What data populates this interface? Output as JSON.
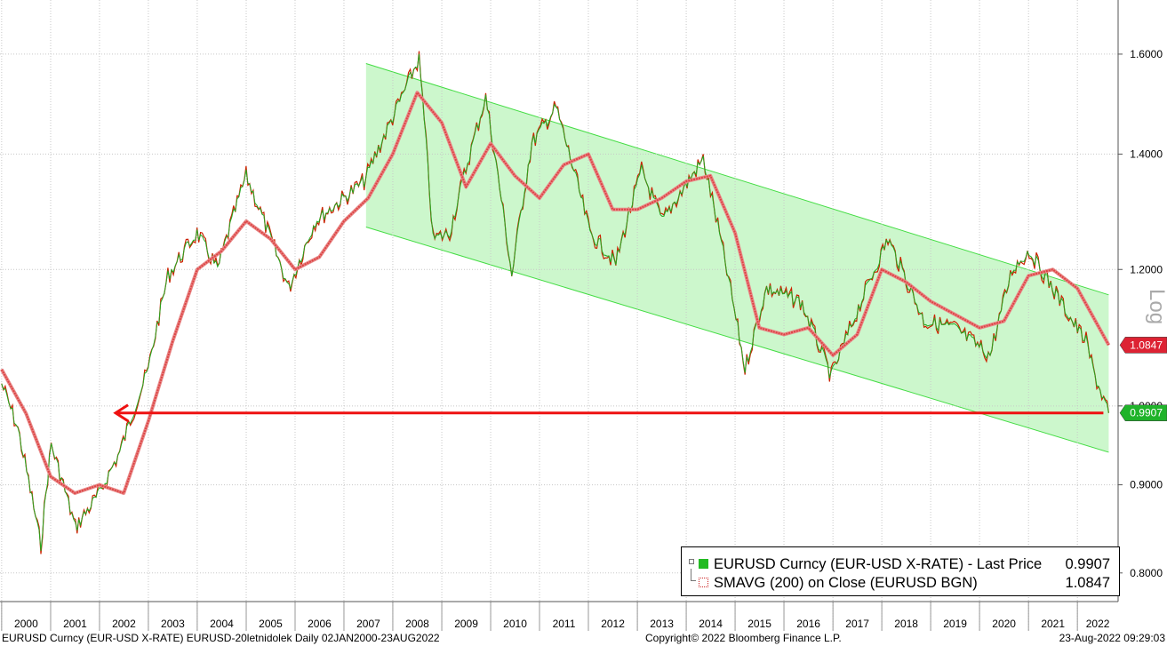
{
  "chart_data": {
    "type": "line",
    "instrument_title": "EURUSD Curncy (EUR-USD X-RATE)",
    "y_scale": "log",
    "y_axis_label": "Log",
    "ylim": [
      0.77,
      1.72
    ],
    "y_ticks": [
      "1.6000",
      "1.4000",
      "1.2000",
      "1.0000",
      "0.9000",
      "0.8000"
    ],
    "x_ticks": [
      "2000",
      "2001",
      "2002",
      "2003",
      "2004",
      "2005",
      "2006",
      "2007",
      "2008",
      "2009",
      "2010",
      "2011",
      "2012",
      "2013",
      "2014",
      "2015",
      "2016",
      "2017",
      "2018",
      "2019",
      "2020",
      "2021",
      "2022"
    ],
    "xlim": [
      "2000-01-02",
      "2022-08-23"
    ],
    "grid": true,
    "series": [
      {
        "name": "EURUSD Curncy (EUR-USD X-RATE) - Last Price",
        "color": "#22aa22",
        "last_value": "0.9907",
        "x": [
          "2000-01-01",
          "2000-05-01",
          "2000-10-20",
          "2001-01-05",
          "2001-07-05",
          "2002-01-01",
          "2002-06-01",
          "2002-12-31",
          "2003-05-27",
          "2003-12-31",
          "2004-06-01",
          "2004-12-31",
          "2005-11-15",
          "2006-06-01",
          "2006-12-31",
          "2007-06-01",
          "2007-12-31",
          "2008-07-15",
          "2008-10-27",
          "2009-03-01",
          "2009-11-25",
          "2010-06-08",
          "2010-11-05",
          "2011-05-04",
          "2012-01-13",
          "2012-07-24",
          "2013-02-01",
          "2013-07-05",
          "2014-05-08",
          "2015-03-16",
          "2015-08-24",
          "2016-05-03",
          "2016-12-20",
          "2017-06-01",
          "2018-02-16",
          "2018-11-12",
          "2019-06-25",
          "2020-03-20",
          "2020-09-01",
          "2021-01-06",
          "2021-11-24",
          "2022-03-07",
          "2022-05-13",
          "2022-08-23"
        ],
        "values": [
          1.03,
          0.97,
          0.83,
          0.95,
          0.85,
          0.89,
          0.94,
          1.05,
          1.19,
          1.26,
          1.2,
          1.36,
          1.17,
          1.28,
          1.32,
          1.35,
          1.47,
          1.59,
          1.25,
          1.26,
          1.51,
          1.19,
          1.42,
          1.49,
          1.26,
          1.21,
          1.37,
          1.28,
          1.39,
          1.05,
          1.17,
          1.15,
          1.04,
          1.12,
          1.25,
          1.12,
          1.11,
          1.07,
          1.2,
          1.23,
          1.12,
          1.09,
          1.04,
          0.9907
        ]
      },
      {
        "name": "SMAVG (200)  on Close (EURUSD BGN)",
        "color": "#dd4444",
        "last_value": "1.0847",
        "x": [
          "2000-01-01",
          "2000-07-01",
          "2001-01-01",
          "2001-07-01",
          "2002-01-01",
          "2002-07-01",
          "2003-01-01",
          "2003-07-01",
          "2004-01-01",
          "2004-07-01",
          "2005-01-01",
          "2005-07-01",
          "2006-01-01",
          "2006-07-01",
          "2007-01-01",
          "2007-07-01",
          "2008-01-01",
          "2008-07-01",
          "2009-01-01",
          "2009-07-01",
          "2010-01-01",
          "2010-07-01",
          "2011-01-01",
          "2011-07-01",
          "2012-01-01",
          "2012-07-01",
          "2013-01-01",
          "2013-07-01",
          "2014-01-01",
          "2014-07-01",
          "2015-01-01",
          "2015-07-01",
          "2016-01-01",
          "2016-07-01",
          "2017-01-01",
          "2017-07-01",
          "2018-01-01",
          "2018-07-01",
          "2019-01-01",
          "2019-07-01",
          "2020-01-01",
          "2020-07-01",
          "2021-01-01",
          "2021-07-01",
          "2022-01-01",
          "2022-08-23"
        ],
        "values": [
          1.05,
          0.99,
          0.91,
          0.89,
          0.9,
          0.89,
          0.98,
          1.09,
          1.2,
          1.23,
          1.28,
          1.25,
          1.2,
          1.22,
          1.28,
          1.32,
          1.4,
          1.52,
          1.46,
          1.34,
          1.42,
          1.36,
          1.32,
          1.38,
          1.4,
          1.3,
          1.3,
          1.32,
          1.35,
          1.36,
          1.26,
          1.11,
          1.1,
          1.11,
          1.07,
          1.1,
          1.2,
          1.18,
          1.15,
          1.13,
          1.11,
          1.12,
          1.19,
          1.2,
          1.17,
          1.0847
        ]
      }
    ],
    "annotations": {
      "channel": {
        "upper": [
          {
            "x": "2007-06-15",
            "y": 1.58
          },
          {
            "x": "2022-08-23",
            "y": 1.16
          }
        ],
        "lower": [
          {
            "x": "2007-06-15",
            "y": 1.27
          },
          {
            "x": "2022-08-23",
            "y": 0.94
          }
        ],
        "color": "#ccf7cc"
      },
      "horizontal_line": {
        "x_start": "2002-05-01",
        "x_end": "2022-08-23",
        "y": 0.9907,
        "color": "#ee1111"
      }
    },
    "last_price_labels": [
      {
        "value": "1.0847",
        "color": "#dd2233"
      },
      {
        "value": "0.9907",
        "color": "#1fb32a"
      }
    ]
  },
  "legend": {
    "row1": {
      "name": "EURUSD Curncy (EUR-USD X-RATE) - Last Price",
      "value": "0.9907"
    },
    "row2": {
      "name": "SMAVG (200)  on Close (EURUSD BGN)",
      "value": "1.0847"
    }
  },
  "footer": {
    "left": "EURUSD Curncy (EUR-USD X-RATE) EURUSD-20letnidolek  Daily 02JAN2000-23AUG2022",
    "center": "Copyright© 2022 Bloomberg Finance L.P.",
    "right": "23-Aug-2022 09:29:03"
  }
}
